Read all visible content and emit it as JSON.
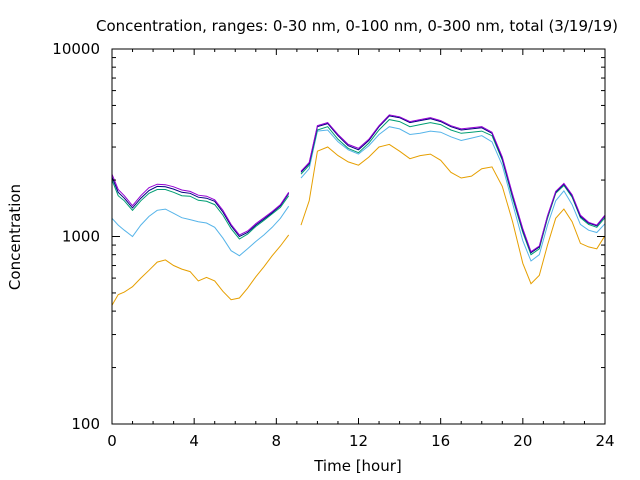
{
  "chart_data": {
    "type": "line",
    "title": "Concentration, ranges: 0-30 nm, 0-100 nm, 0-300 nm, total (3/19/19)",
    "xlabel": "Time [hour]",
    "ylabel": "Concentration",
    "xlim": [
      0,
      24
    ],
    "ylim": [
      100,
      10000
    ],
    "y_scale": "log",
    "grid": false,
    "legend": "none",
    "x_ticks": [
      0,
      4,
      8,
      12,
      16,
      20,
      24
    ],
    "y_ticks": [
      100,
      1000,
      10000
    ],
    "x_tick_labels": [
      "0",
      "4",
      "8",
      "12",
      "16",
      "20",
      "24"
    ],
    "y_tick_labels": [
      "100",
      "1000",
      "10000"
    ],
    "series": [
      {
        "color": "#e69f00",
        "x": [
          0,
          0.3,
          0.6,
          1.0,
          1.4,
          1.8,
          2.2,
          2.6,
          3.0,
          3.4,
          3.8,
          4.2,
          4.6,
          5.0,
          5.4,
          5.8,
          6.2,
          6.6,
          7.0,
          7.4,
          7.8,
          8.2,
          8.6,
          9.2,
          9.6,
          10.0,
          10.5,
          11.0,
          11.5,
          12.0,
          12.5,
          13.0,
          13.5,
          14.0,
          14.5,
          15.0,
          15.5,
          16.0,
          16.5,
          17.0,
          17.5,
          18.0,
          18.5,
          19.0,
          19.5,
          20.0,
          20.4,
          20.8,
          21.2,
          21.6,
          22.0,
          22.4,
          22.8,
          23.2,
          23.6,
          24.0
        ],
        "y": [
          430,
          490,
          505,
          540,
          600,
          660,
          730,
          750,
          700,
          670,
          650,
          580,
          605,
          580,
          510,
          460,
          470,
          530,
          610,
          690,
          790,
          890,
          1020,
          1150,
          1550,
          2850,
          3000,
          2700,
          2500,
          2400,
          2650,
          3000,
          3100,
          2850,
          2600,
          2700,
          2750,
          2550,
          2200,
          2050,
          2100,
          2300,
          2350,
          1850,
          1200,
          720,
          560,
          620,
          900,
          1250,
          1400,
          1200,
          920,
          880,
          860,
          1010
        ]
      },
      {
        "color": "#56b4e9",
        "x": [
          0,
          0.3,
          0.6,
          1.0,
          1.4,
          1.8,
          2.2,
          2.6,
          3.0,
          3.4,
          3.8,
          4.2,
          4.6,
          5.0,
          5.4,
          5.8,
          6.2,
          6.6,
          7.0,
          7.4,
          7.8,
          8.2,
          8.6,
          9.2,
          9.6,
          10.0,
          10.5,
          11.0,
          11.5,
          12.0,
          12.5,
          13.0,
          13.5,
          14.0,
          14.5,
          15.0,
          15.5,
          16.0,
          16.5,
          17.0,
          17.5,
          18.0,
          18.5,
          19.0,
          19.5,
          20.0,
          20.4,
          20.8,
          21.2,
          21.6,
          22.0,
          22.4,
          22.8,
          23.2,
          23.6,
          24.0
        ],
        "y": [
          1250,
          1150,
          1080,
          1000,
          1150,
          1280,
          1380,
          1400,
          1330,
          1260,
          1230,
          1200,
          1180,
          1120,
          980,
          840,
          790,
          860,
          940,
          1020,
          1120,
          1250,
          1450,
          2050,
          2300,
          3650,
          3700,
          3200,
          2900,
          2750,
          3050,
          3500,
          3850,
          3750,
          3500,
          3550,
          3650,
          3600,
          3400,
          3250,
          3350,
          3450,
          3200,
          2400,
          1500,
          950,
          740,
          800,
          1150,
          1550,
          1750,
          1480,
          1160,
          1080,
          1050,
          1170
        ]
      },
      {
        "color": "#009e73",
        "x": [
          0,
          0.3,
          0.6,
          1.0,
          1.4,
          1.8,
          2.2,
          2.6,
          3.0,
          3.4,
          3.8,
          4.2,
          4.6,
          5.0,
          5.4,
          5.8,
          6.2,
          6.6,
          7.0,
          7.4,
          7.8,
          8.2,
          8.6,
          9.2,
          9.6,
          10.0,
          10.5,
          11.0,
          11.5,
          12.0,
          12.5,
          13.0,
          13.5,
          14.0,
          14.5,
          15.0,
          15.5,
          16.0,
          16.5,
          17.0,
          17.5,
          18.0,
          18.5,
          19.0,
          19.5,
          20.0,
          20.4,
          20.8,
          21.2,
          21.6,
          22.0,
          22.4,
          22.8,
          23.2,
          23.6,
          24.0
        ],
        "y": [
          2000,
          1650,
          1550,
          1380,
          1550,
          1700,
          1780,
          1780,
          1720,
          1650,
          1640,
          1560,
          1540,
          1480,
          1300,
          1100,
          970,
          1030,
          1130,
          1220,
          1320,
          1430,
          1650,
          2150,
          2400,
          3700,
          3850,
          3300,
          2950,
          2800,
          3150,
          3700,
          4200,
          4100,
          3850,
          3950,
          4050,
          3950,
          3700,
          3550,
          3600,
          3650,
          3450,
          2550,
          1600,
          1050,
          800,
          860,
          1250,
          1700,
          1870,
          1620,
          1260,
          1160,
          1120,
          1260
        ]
      },
      {
        "color": "#000080",
        "x": [
          0,
          0.3,
          0.6,
          1.0,
          1.4,
          1.8,
          2.2,
          2.6,
          3.0,
          3.4,
          3.8,
          4.2,
          4.6,
          5.0,
          5.4,
          5.8,
          6.2,
          6.6,
          7.0,
          7.4,
          7.8,
          8.2,
          8.6,
          9.2,
          9.6,
          10.0,
          10.5,
          11.0,
          11.5,
          12.0,
          12.5,
          13.0,
          13.5,
          14.0,
          14.5,
          15.0,
          15.5,
          16.0,
          16.5,
          17.0,
          17.5,
          18.0,
          18.5,
          19.0,
          19.5,
          20.0,
          20.4,
          20.8,
          21.2,
          21.6,
          22.0,
          22.4,
          22.8,
          23.2,
          23.6,
          24.0
        ],
        "y": [
          2080,
          1720,
          1600,
          1420,
          1600,
          1760,
          1850,
          1840,
          1790,
          1720,
          1700,
          1620,
          1600,
          1540,
          1350,
          1140,
          1000,
          1050,
          1150,
          1240,
          1340,
          1460,
          1700,
          2200,
          2450,
          3850,
          4000,
          3450,
          3050,
          2900,
          3250,
          3850,
          4400,
          4300,
          4050,
          4150,
          4250,
          4100,
          3850,
          3700,
          3750,
          3800,
          3550,
          2600,
          1650,
          1080,
          820,
          880,
          1280,
          1720,
          1900,
          1650,
          1280,
          1180,
          1140,
          1290
        ]
      },
      {
        "color": "#9400d3",
        "x": [
          0,
          0.3,
          0.6,
          1.0,
          1.4,
          1.8,
          2.2,
          2.6,
          3.0,
          3.4,
          3.8,
          4.2,
          4.6,
          5.0,
          5.4,
          5.8,
          6.2,
          6.6,
          7.0,
          7.4,
          7.8,
          8.2,
          8.6,
          9.2,
          9.6,
          10.0,
          10.5,
          11.0,
          11.5,
          12.0,
          12.5,
          13.0,
          13.5,
          14.0,
          14.5,
          15.0,
          15.5,
          16.0,
          16.5,
          17.0,
          17.5,
          18.0,
          18.5,
          19.0,
          19.5,
          20.0,
          20.4,
          20.8,
          21.2,
          21.6,
          22.0,
          22.4,
          22.8,
          23.2,
          23.6,
          24.0
        ],
        "y": [
          2150,
          1780,
          1650,
          1460,
          1650,
          1820,
          1900,
          1890,
          1840,
          1770,
          1740,
          1660,
          1640,
          1570,
          1380,
          1160,
          1020,
          1070,
          1170,
          1260,
          1360,
          1480,
          1720,
          2230,
          2480,
          3900,
          4050,
          3500,
          3100,
          2950,
          3300,
          3900,
          4450,
          4350,
          4100,
          4200,
          4300,
          4150,
          3900,
          3750,
          3800,
          3850,
          3600,
          2650,
          1680,
          1100,
          830,
          890,
          1290,
          1740,
          1920,
          1670,
          1300,
          1190,
          1150,
          1300
        ]
      }
    ]
  }
}
